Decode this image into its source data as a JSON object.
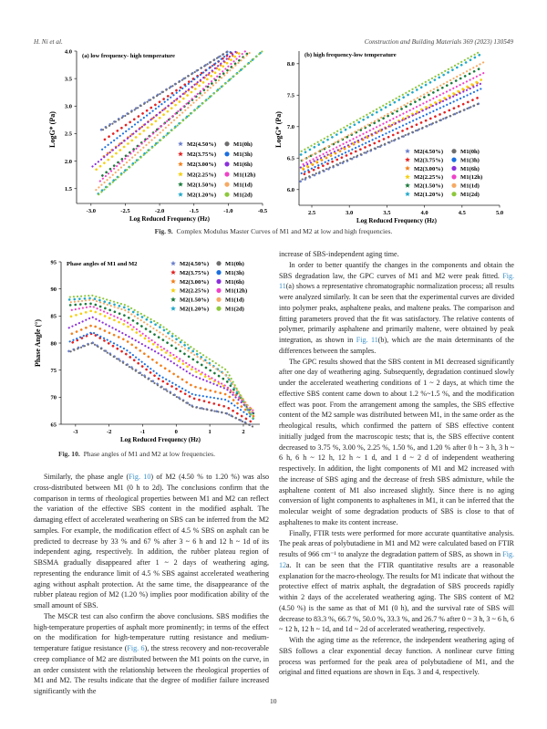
{
  "header": {
    "left": "H. Ni et al.",
    "right": "Construction and Building Materials 369 (2023) 130549"
  },
  "legend_labels": {
    "m2": [
      "M2(4.50%)",
      "M2(3.75%)",
      "M2(3.00%)",
      "M2(2.25%)",
      "M2(1.50%)",
      "M2(1.20%)"
    ],
    "m1": [
      "M1(0h)",
      "M1(3h)",
      "M1(6h)",
      "M1(12h)",
      "M1(1d)",
      "M1(2d)"
    ]
  },
  "colors": {
    "m2": [
      "#6b7fcc",
      "#e32222",
      "#f2801c",
      "#f5d010",
      "#1c7a3c",
      "#22a9c9"
    ],
    "m1": [
      "#6e6e6e",
      "#1b6fe0",
      "#8b2fdc",
      "#ef42c8",
      "#f6aa64",
      "#8dc83c"
    ]
  },
  "chart_data": [
    {
      "type": "scatter",
      "title": "(a) low frequency- high temperature",
      "xlabel": "Log Reduced Frequency (Hz)",
      "ylabel": "LogG* (Pa)",
      "xlim": [
        -3.21,
        -0.5
      ],
      "ylim": [
        1.23,
        4.0
      ],
      "xticks": [
        "-3.0",
        "-2.5",
        "-2.0",
        "-1.5",
        "-1.0",
        "-0.5"
      ],
      "xtick_values": [
        -3.0,
        -2.5,
        -2.0,
        -1.5,
        -1.0,
        -0.5
      ],
      "yticks": [
        "1.5",
        "2.0",
        "2.5",
        "3.0",
        "3.5",
        "4.0"
      ],
      "ytick_values": [
        1.5,
        2.0,
        2.5,
        3.0,
        3.5,
        4.0
      ],
      "legend": "bottom-right",
      "series": [
        {
          "name": "M2(4.50%)",
          "x": [
            -2.85,
            -1.0
          ],
          "y": [
            2.57,
            4.0
          ]
        },
        {
          "name": "M2(3.75%)",
          "x": [
            -2.85,
            -0.92
          ],
          "y": [
            2.35,
            4.0
          ]
        },
        {
          "name": "M2(3.00%)",
          "x": [
            -2.85,
            -0.85
          ],
          "y": [
            2.05,
            4.0
          ]
        },
        {
          "name": "M2(2.25%)",
          "x": [
            -2.95,
            -0.8
          ],
          "y": [
            1.82,
            4.0
          ]
        },
        {
          "name": "M2(1.50%)",
          "x": [
            -2.85,
            -0.68
          ],
          "y": [
            1.72,
            4.0
          ]
        },
        {
          "name": "M2(1.20%)",
          "x": [
            -2.9,
            -0.5
          ],
          "y": [
            1.4,
            4.0
          ]
        },
        {
          "name": "M1(0h)",
          "x": [
            -2.85,
            -1.0
          ],
          "y": [
            2.55,
            4.0
          ]
        },
        {
          "name": "M1(3h)",
          "x": [
            -2.85,
            -0.95
          ],
          "y": [
            2.2,
            4.0
          ]
        },
        {
          "name": "M1(6h)",
          "x": [
            -2.98,
            -0.88
          ],
          "y": [
            1.9,
            4.0
          ]
        },
        {
          "name": "M1(12h)",
          "x": [
            -2.9,
            -0.75
          ],
          "y": [
            1.6,
            4.0
          ]
        },
        {
          "name": "M1(1d)",
          "x": [
            -2.95,
            -0.66
          ],
          "y": [
            1.45,
            4.0
          ]
        },
        {
          "name": "M1(2d)",
          "x": [
            -2.9,
            -0.5
          ],
          "y": [
            1.38,
            4.0
          ]
        }
      ]
    },
    {
      "type": "scatter",
      "title": "(b) high frequency-low temperature",
      "xlabel": "Log Reduced Frequency (Hz)",
      "ylabel": "LogG* (Pa)",
      "xlim": [
        2.33,
        5.0
      ],
      "ylim": [
        5.75,
        8.2
      ],
      "xticks": [
        "2.5",
        "3.0",
        "3.5",
        "4.0",
        "4.5",
        "5.0"
      ],
      "xtick_values": [
        2.5,
        3.0,
        3.5,
        4.0,
        4.5,
        5.0
      ],
      "yticks": [
        "6.0",
        "6.5",
        "7.0",
        "7.5",
        "8.0"
      ],
      "ytick_values": [
        6.0,
        6.5,
        7.0,
        7.5,
        8.0
      ],
      "legend": "bottom-right",
      "series": [
        {
          "name": "M2(4.50%)",
          "x": [
            2.35,
            4.75
          ],
          "y": [
            6.13,
            7.38
          ]
        },
        {
          "name": "M2(3.75%)",
          "x": [
            2.35,
            4.75
          ],
          "y": [
            6.22,
            7.48
          ]
        },
        {
          "name": "M2(3.00%)",
          "x": [
            2.35,
            4.75
          ],
          "y": [
            6.3,
            7.72
          ]
        },
        {
          "name": "M2(2.25%)",
          "x": [
            2.35,
            4.78
          ],
          "y": [
            6.32,
            7.76
          ]
        },
        {
          "name": "M2(1.50%)",
          "x": [
            2.35,
            4.78
          ],
          "y": [
            6.45,
            7.95
          ]
        },
        {
          "name": "M2(1.20%)",
          "x": [
            2.35,
            4.75
          ],
          "y": [
            6.55,
            8.15
          ]
        },
        {
          "name": "M1(0h)",
          "x": [
            2.35,
            4.75
          ],
          "y": [
            6.15,
            7.38
          ]
        },
        {
          "name": "M1(3h)",
          "x": [
            2.35,
            4.75
          ],
          "y": [
            6.25,
            7.6
          ]
        },
        {
          "name": "M1(6h)",
          "x": [
            2.35,
            4.78
          ],
          "y": [
            6.35,
            7.7
          ]
        },
        {
          "name": "M1(12h)",
          "x": [
            2.35,
            4.8
          ],
          "y": [
            6.38,
            7.86
          ]
        },
        {
          "name": "M1(1d)",
          "x": [
            2.35,
            4.8
          ],
          "y": [
            6.45,
            8.03
          ]
        },
        {
          "name": "M1(2d)",
          "x": [
            2.35,
            4.75
          ],
          "y": [
            6.6,
            8.2
          ]
        }
      ]
    },
    {
      "type": "scatter",
      "title": "Phase angles of M1 and M2",
      "xlabel": "Log Reduced Frequency (Hz)",
      "ylabel": "Phase Angle (°)",
      "xlim": [
        -3.43,
        2.49
      ],
      "ylim": [
        65,
        95
      ],
      "xticks": [
        "-3",
        "-2",
        "-1",
        "0",
        "1",
        "2"
      ],
      "xtick_values": [
        -3,
        -2,
        -1,
        0,
        1,
        2
      ],
      "yticks": [
        "65",
        "70",
        "75",
        "80",
        "85",
        "90",
        "95"
      ],
      "ytick_values": [
        65,
        70,
        75,
        80,
        85,
        90,
        95
      ],
      "legend": "top-right",
      "x": [
        -3.2,
        -2.5,
        -1.5,
        -0.5,
        0.5,
        1.5,
        2.3
      ],
      "series": [
        {
          "name": "M2(4.50%)",
          "y": [
            78.5,
            80.1,
            76.2,
            72.2,
            68.3,
            67.0,
            64.6
          ]
        },
        {
          "name": "M2(3.75%)",
          "y": [
            79.8,
            81.8,
            78.0,
            73.3,
            69.8,
            68.2,
            65.2
          ]
        },
        {
          "name": "M2(3.00%)",
          "y": [
            81.5,
            83.3,
            80.5,
            76.0,
            72.0,
            70.5,
            66.5
          ]
        },
        {
          "name": "M2(2.25%)",
          "y": [
            84.8,
            86.0,
            83.3,
            79.0,
            75.0,
            71.8,
            67.5
          ]
        },
        {
          "name": "M2(1.50%)",
          "y": [
            87.0,
            87.3,
            85.0,
            81.0,
            77.0,
            73.0,
            67.0
          ]
        },
        {
          "name": "M2(1.20%)",
          "y": [
            88.0,
            88.3,
            86.5,
            83.0,
            78.5,
            74.0,
            66.0
          ]
        },
        {
          "name": "M1(0h)",
          "y": [
            78.3,
            80.0,
            76.0,
            72.0,
            68.2,
            67.0,
            64.5
          ]
        },
        {
          "name": "M1(3h)",
          "y": [
            80.2,
            82.0,
            78.8,
            74.0,
            70.5,
            69.5,
            66.0
          ]
        },
        {
          "name": "M1(6h)",
          "y": [
            82.8,
            84.8,
            81.5,
            78.0,
            74.0,
            71.5,
            67.0
          ]
        },
        {
          "name": "M1(12h)",
          "y": [
            86.0,
            86.8,
            84.0,
            79.5,
            75.5,
            72.0,
            67.5
          ]
        },
        {
          "name": "M1(1d)",
          "y": [
            87.5,
            88.0,
            86.0,
            82.0,
            78.0,
            74.0,
            67.0
          ]
        },
        {
          "name": "M1(2d)",
          "y": [
            88.5,
            88.8,
            87.0,
            83.5,
            79.0,
            75.0,
            66.0
          ]
        }
      ]
    }
  ],
  "captions": {
    "fig9": {
      "label": "Fig. 9.",
      "text": "Complex Modulus Master Curves of M1 and M2 at low and high frequencies."
    },
    "fig10": {
      "label": "Fig. 10.",
      "text": "Phase angles of M1 and M2 at low frequencies."
    }
  },
  "left_column": [
    [
      {
        "t": "Similarly, the phase angle ("
      },
      {
        "t": "Fig. 10",
        "link": true
      },
      {
        "t": ") of M2 (4.50 % to 1.20 %) was also cross-distributed between M1 (0 h to 2d). The conclusions confirm that the comparison in terms of rheological properties between M1 and M2 can reflect the variation of the effective SBS content in the modified asphalt. The damaging effect of accelerated weathering on SBS can be inferred from the M2 samples. For example, the modification effect of 4.5 % SBS on asphalt can be predicted to decrease by 33 % and 67 % after 3 ~ 6 h and 12 h ~ 1d of its independent aging, respectively. In addition, the rubber plateau region of SBSMA gradually disappeared after 1 ~ 2 days of weathering aging, representing the endurance limit of 4.5 % SBS against accelerated weathering aging without asphalt protection. At the same time, the disappearance of the rubber plateau region of M2 (1.20 %) implies poor modification ability of the small amount of SBS."
      }
    ],
    [
      {
        "t": "The MSCR test can also confirm the above conclusions. SBS modifies the high-temperature properties of asphalt more prominently; in terms of the effect on the modification for high-temperature rutting resistance and medium-temperature fatigue resistance ("
      },
      {
        "t": "Fig. 6",
        "link": true
      },
      {
        "t": "), the stress recovery and non-recoverable creep compliance of M2 are distributed between the M1 points on the curve, in an order consistent with the relationship between the rheological properties of M1 and M2. The results indicate that the degree of modifier failure increased significantly with the"
      }
    ]
  ],
  "right_column": [
    [
      {
        "t": "increase of SBS-independent aging time."
      }
    ],
    [
      {
        "t": "In order to better quantify the changes in the components and obtain the SBS degradation law, the GPC curves of M1 and M2 were peak fitted. "
      },
      {
        "t": "Fig. 11",
        "link": true
      },
      {
        "t": "(a) shows a representative chromatographic normalization process; all results were analyzed similarly. It can be seen that the experimental curves are divided into polymer peaks, asphaltene peaks, and maltene peaks. The comparison and fitting parameters proved that the fit was satisfactory. The relative contents of polymer, primarily asphaltene and primarily maltene, were obtained by peak integration, as shown in "
      },
      {
        "t": "Fig. 11",
        "link": true
      },
      {
        "t": "(b), which are the main determinants of the differences between the samples."
      }
    ],
    [
      {
        "t": "The GPC results showed that the SBS content in M1 decreased significantly after one day of weathering aging. Subsequently, degradation continued slowly under the accelerated weathering conditions of 1 ~ 2 days, at which time the effective SBS content came down to about 1.2 %~1.5 %, and the modification effect was poor. From the arrangement among the samples, the SBS effective content of the M2 sample was distributed between M1, in the same order as the rheological results, which confirmed the pattern of SBS effective content initially judged from the macroscopic tests; that is, the SBS effective content decreased to 3.75 %, 3.00 %, 2.25 %, 1.50 %, and 1.20 % after 0 h ~ 3 h, 3 h ~ 6 h, 6 h ~ 12 h, 12 h ~ 1 d, and 1 d ~ 2 d of independent weathering respectively. In addition, the light components of M1 and M2 increased with the increase of SBS aging and the decrease of fresh SBS admixture, while the asphaltene content of M1 also increased slightly. Since there is no aging conversion of light components to asphaltenes in M1, it can be inferred that the molecular weight of some degradation products of SBS is close to that of asphaltenes to make its content increase."
      }
    ],
    [
      {
        "t": "Finally, FTIR tests were performed for more accurate quantitative analysis. The peak areas of polybutadiene in M1 and M2 were calculated based on FTIR results of 966 cm⁻¹ to analyze the degradation pattern of SBS, as shown in "
      },
      {
        "t": "Fig. 12",
        "link": true
      },
      {
        "t": "a. It can be seen that the FTIR quantitative results are a reasonable explanation for the macro-rheology. The results for M1 indicate that without the protective effect of matrix asphalt, the degradation of SBS proceeds rapidly within 2 days of the accelerated weathering aging. The SBS content of M2 (4.50 %) is the same as that of M1 (0 h), and the survival rate of SBS will decrease to 83.3 %, 66.7 %, 50.0 %, 33.3 %, and 26.7 % after 0 ~ 3 h, 3 ~ 6 h, 6 ~ 12 h, 12 h ~ 1d, and 1d ~ 2d of accelerated weathering, respectively."
      }
    ],
    [
      {
        "t": "With the aging time as the reference, the independent weathering aging of SBS follows a clear exponential decay function. A nonlinear curve fitting process was performed for the peak area of polybutadiene of M1, and the original and fitted equations are shown in Eqs. 3 and 4, respectively."
      }
    ]
  ],
  "page_number": "10"
}
